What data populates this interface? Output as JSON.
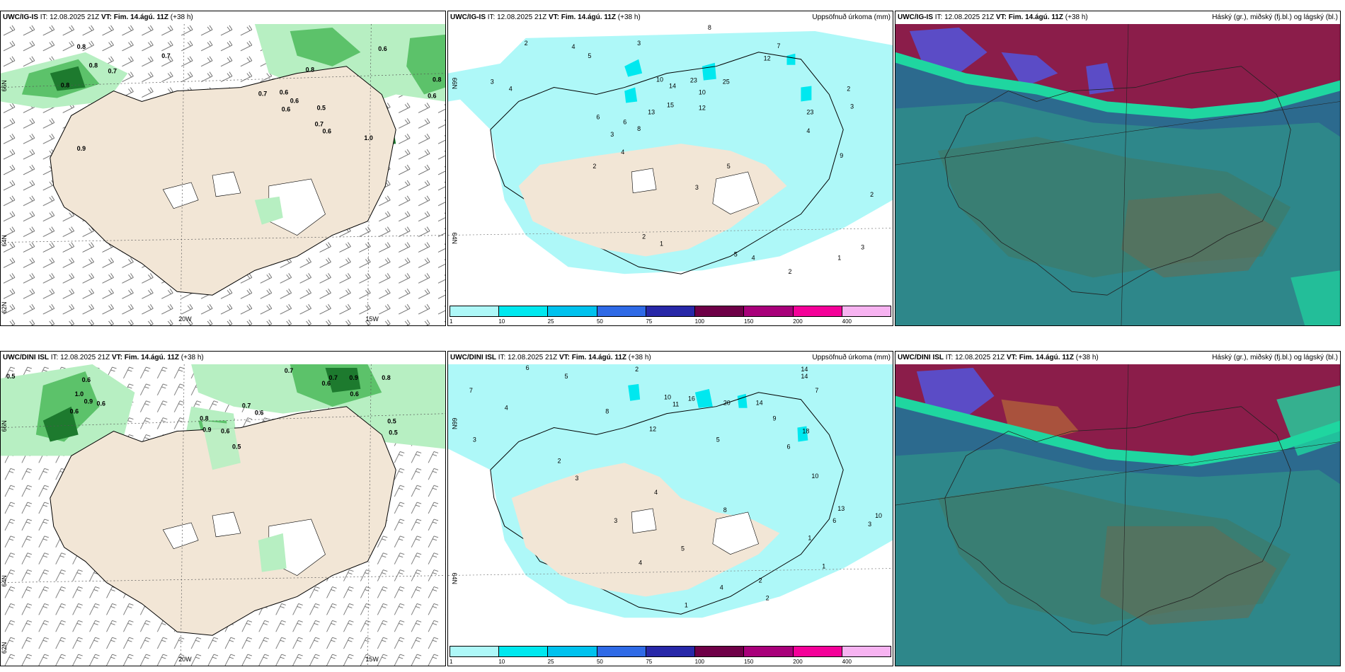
{
  "panels": [
    {
      "header": {
        "model": "UWC/IG-IS",
        "it": "IT: 12.08.2025 21Z",
        "vt": "VT: Fim. 14.ágú. 11Z",
        "lead": "(+38 h)",
        "title": ""
      },
      "axis_labels": {
        "w20": "20W",
        "w15": "15W",
        "lat66": "66N",
        "lat64": "64N",
        "lat62": "62N"
      },
      "values": [
        "0.8",
        "0.7",
        "0.8",
        "0.8",
        "0.6",
        "0.7",
        "0.6",
        "0.8",
        "0.6",
        "0.5",
        "0.7",
        "0.6",
        "0.9",
        "1.0",
        "0.6",
        "0.8",
        "0.7",
        "0.6"
      ]
    },
    {
      "header": {
        "model": "UWC/IG-IS",
        "it": "IT: 12.08.2025 21Z",
        "vt": "VT: Fim. 14.ágú. 11Z",
        "lead": "(+38 h)",
        "title": "Uppsöfnuð úrkoma (mm)"
      },
      "axis_labels": {
        "lat66": "66N",
        "lat64": "64N"
      },
      "values": [
        "2",
        "3",
        "8",
        "4",
        "5",
        "3",
        "4",
        "12",
        "7",
        "10",
        "14",
        "23",
        "25",
        "10",
        "15",
        "6",
        "13",
        "12",
        "23",
        "5",
        "4",
        "3",
        "2",
        "6",
        "8",
        "9",
        "2",
        "3",
        "4",
        "3",
        "1",
        "2",
        "5",
        "4",
        "2",
        "1",
        "2",
        "3"
      ],
      "colorbar": {
        "colors": [
          "#aef8f8",
          "#00e8ef",
          "#00c2ee",
          "#2f6ae6",
          "#2828a8",
          "#6e0047",
          "#a8007a",
          "#f40099",
          "#f7b3f1"
        ],
        "ticks": [
          "1",
          "10",
          "25",
          "50",
          "75",
          "100",
          "150",
          "200",
          "400"
        ]
      }
    },
    {
      "header": {
        "model": "UWC/IG-IS",
        "it": "IT: 12.08.2025 21Z",
        "vt": "VT: Fim. 14.ágú. 11Z",
        "lead": "(+38 h)",
        "title": "Háský (gr.), miðský (fj.bl.) og lágský (bl.)"
      }
    },
    {
      "header": {
        "model": "UWC/DINI ISL",
        "it": "IT: 12.08.2025 21Z",
        "vt": "VT: Fim. 14.ágú. 11Z",
        "lead": "(+38 h)",
        "title": ""
      },
      "axis_labels": {
        "w20": "20W",
        "w15": "15W",
        "lat66": "66N",
        "lat64": "64N",
        "lat62": "62N"
      },
      "values": [
        "0.5",
        "0.6",
        "1.0",
        "0.9",
        "0.6",
        "0.7",
        "0.7",
        "0.6",
        "0.9",
        "0.8",
        "0.6",
        "0.5",
        "0.8",
        "0.9",
        "0.5",
        "0.6",
        "0.6",
        "0.5",
        "0.6",
        "0.7"
      ]
    },
    {
      "header": {
        "model": "UWC/DINI ISL",
        "it": "IT: 12.08.2025 21Z",
        "vt": "VT: Fim. 14.ágú. 11Z",
        "lead": "(+38 h)",
        "title": "Uppsöfnuð úrkoma (mm)"
      },
      "axis_labels": {
        "lat66": "66N",
        "lat64": "64N"
      },
      "values": [
        "6",
        "7",
        "3",
        "4",
        "5",
        "2",
        "8",
        "10",
        "11",
        "12",
        "16",
        "20",
        "14",
        "14",
        "18",
        "13",
        "10",
        "7",
        "6",
        "5",
        "4",
        "3",
        "2",
        "1",
        "9",
        "8",
        "14",
        "3",
        "2",
        "1",
        "5",
        "4",
        "6",
        "10",
        "3",
        "2",
        "1",
        "4"
      ],
      "colorbar": {
        "colors": [
          "#aef8f8",
          "#00e8ef",
          "#00c2ee",
          "#2f6ae6",
          "#2828a8",
          "#6e0047",
          "#a8007a",
          "#f40099",
          "#f7b3f1"
        ],
        "ticks": [
          "1",
          "10",
          "25",
          "50",
          "75",
          "100",
          "150",
          "200",
          "400"
        ]
      }
    },
    {
      "header": {
        "model": "UWC/DINI ISL",
        "it": "IT: 12.08.2025 21Z",
        "vt": "VT: Fim. 14.ágú. 11Z",
        "lead": "(+38 h)",
        "title": "Háský (gr.), miðský (fj.bl.) og lágský (bl.)"
      }
    }
  ],
  "colors": {
    "land": "#f2e6d6",
    "low_cloud_green": "#b7efc2",
    "mid_green": "#5cc26a",
    "dark_green": "#1d7a2e",
    "precip_light": "#aef8f8",
    "precip_cyan": "#00e8ef",
    "cloud_teal": "#2f8c8a",
    "cloud_blue": "#2c6a8e",
    "cloud_maroon": "#8b1d4a",
    "cloud_violet": "#5b4cc6",
    "cloud_mint": "#1fd6a0"
  }
}
